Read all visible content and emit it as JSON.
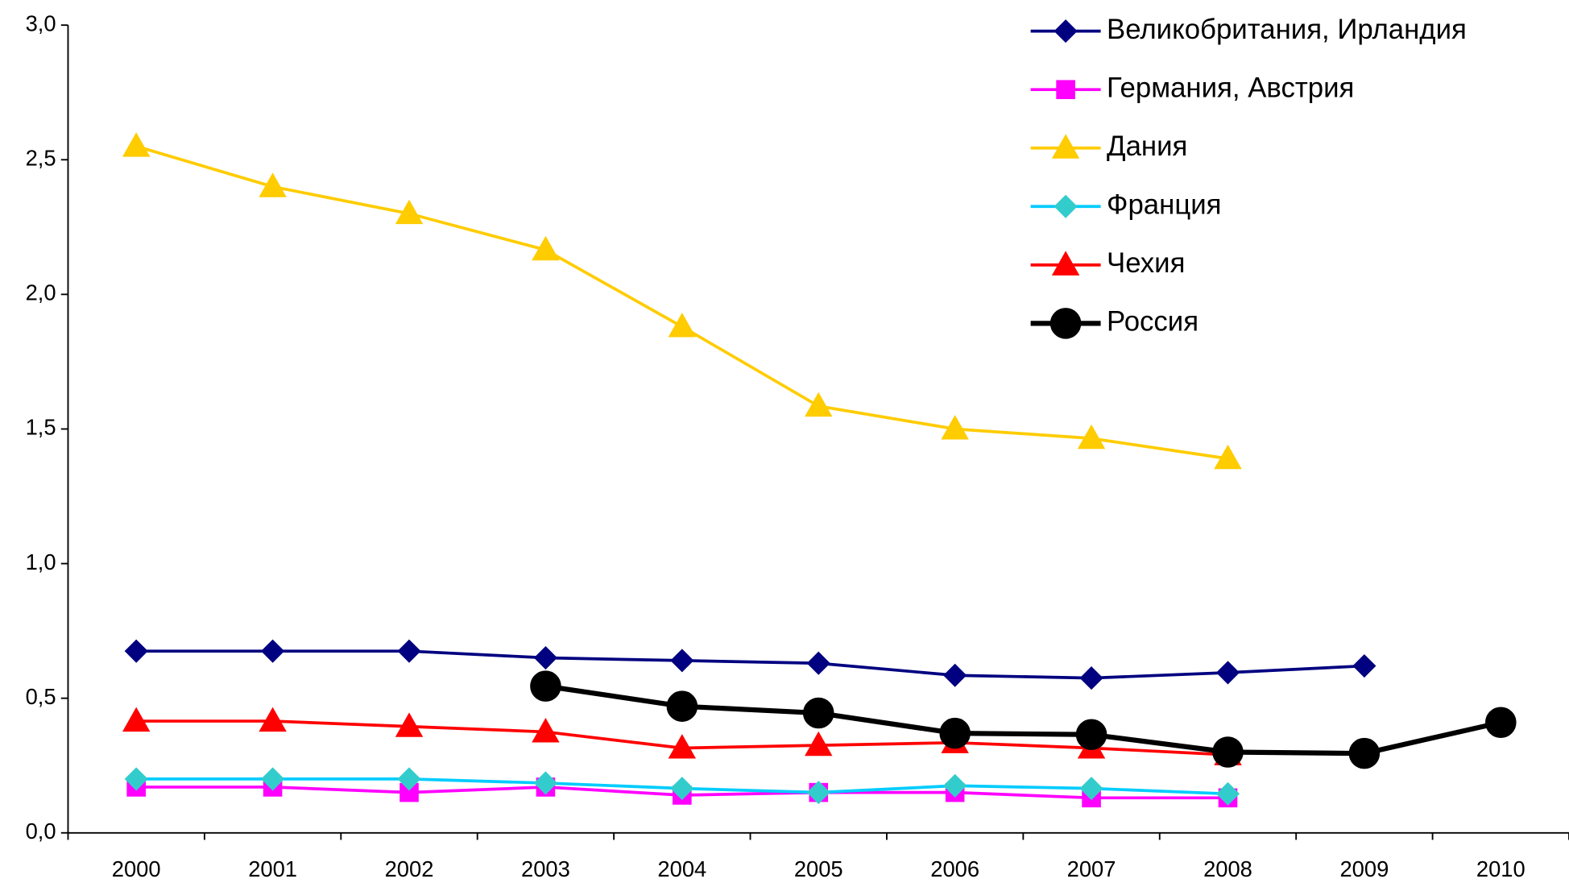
{
  "chart_data": {
    "type": "line",
    "categories": [
      "2000",
      "2001",
      "2002",
      "2003",
      "2004",
      "2005",
      "2006",
      "2007",
      "2008",
      "2009",
      "2010"
    ],
    "series": [
      {
        "name": "Великобритания, Ирландия",
        "color": "#000080",
        "marker": "diamond",
        "values": [
          0.675,
          0.675,
          0.675,
          0.65,
          0.64,
          0.63,
          0.585,
          0.575,
          0.595,
          0.62,
          null
        ]
      },
      {
        "name": "Германия, Австрия",
        "color": "#ff00ff",
        "marker": "square",
        "values": [
          0.17,
          0.17,
          0.15,
          0.17,
          0.14,
          0.15,
          0.15,
          0.13,
          0.13,
          null,
          null
        ]
      },
      {
        "name": "Дания",
        "color": "#ffcc00",
        "marker": "triangle",
        "values": [
          2.55,
          2.4,
          2.3,
          2.165,
          1.88,
          1.585,
          1.5,
          1.465,
          1.39,
          null,
          null
        ]
      },
      {
        "name": "Франция",
        "color": "#00ccff",
        "marker": "diamond",
        "marker_color": "#33cccc",
        "values": [
          0.2,
          0.2,
          0.2,
          0.185,
          0.165,
          0.15,
          0.175,
          0.165,
          0.145,
          null,
          null
        ]
      },
      {
        "name": "Чехия",
        "color": "#ff0000",
        "marker": "triangle",
        "values": [
          0.415,
          0.415,
          0.395,
          0.375,
          0.315,
          0.325,
          0.335,
          0.315,
          0.29,
          null,
          null
        ]
      },
      {
        "name": "Россия",
        "color": "#000000",
        "marker": "circle",
        "thick": true,
        "values": [
          null,
          null,
          null,
          0.545,
          0.47,
          0.445,
          0.37,
          0.365,
          0.3,
          0.295,
          0.41
        ]
      }
    ],
    "ylim": [
      0,
      3
    ],
    "yticks": [
      {
        "value": 0,
        "label": "0,0"
      },
      {
        "value": 0.5,
        "label": "0,5"
      },
      {
        "value": 1,
        "label": "1,0"
      },
      {
        "value": 1.5,
        "label": "1,5"
      },
      {
        "value": 2,
        "label": "2,0"
      },
      {
        "value": 2.5,
        "label": "2,5"
      },
      {
        "value": 3,
        "label": "3,0"
      }
    ],
    "legend": "top-right"
  }
}
